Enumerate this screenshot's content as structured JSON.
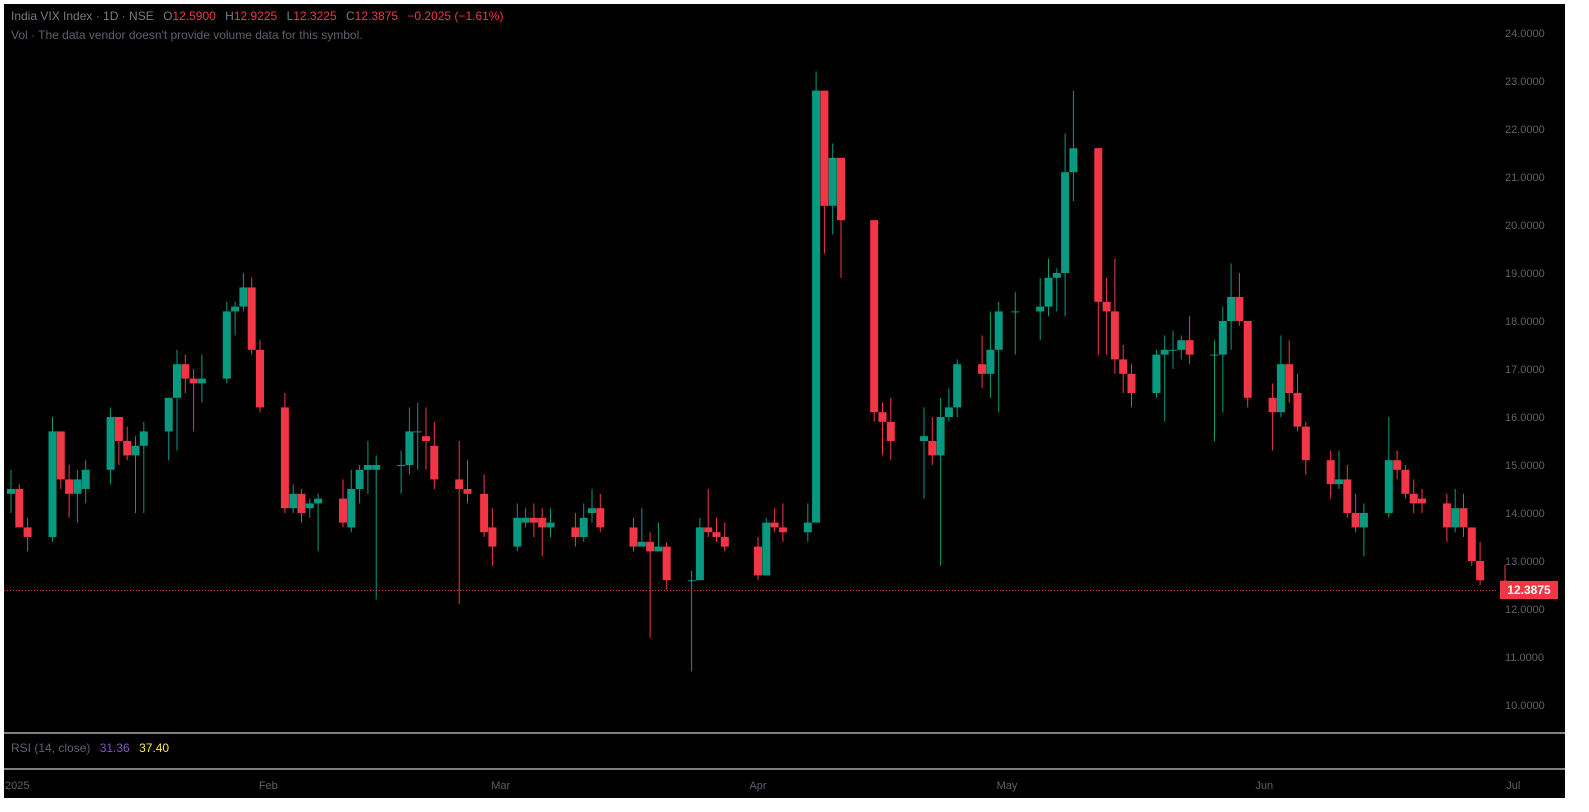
{
  "header": {
    "symbol": "India VIX Index · 1D · NSE",
    "o_label": "O",
    "o_value": "12.5900",
    "h_label": "H",
    "h_value": "12.9225",
    "l_label": "L",
    "l_value": "12.3225",
    "c_label": "C",
    "c_value": "12.3875",
    "change": "−0.2025 (−1.61%)",
    "vol_note": "Vol · The data vendor doesn't provide volume data for this symbol."
  },
  "rsi": {
    "label": "RSI (14, close)",
    "value1": "31.36",
    "value2": "37.40",
    "value1_color": "#7e57c2",
    "value2_color": "#ffeb3b"
  },
  "last_price": {
    "label": "12.3875",
    "value": 12.3875,
    "color": "#f23645"
  },
  "colors": {
    "up": "#089981",
    "down": "#f23645",
    "background": "#000000",
    "text": "#5d606b"
  },
  "chart_data": {
    "type": "candlestick",
    "title": "India VIX Index · 1D · NSE",
    "ylim": [
      9.5,
      24.4
    ],
    "y_ticks": [
      "10.0000",
      "11.0000",
      "12.0000",
      "13.0000",
      "14.0000",
      "15.0000",
      "16.0000",
      "17.0000",
      "18.0000",
      "19.0000",
      "20.0000",
      "21.0000",
      "22.0000",
      "23.0000",
      "24.0000"
    ],
    "x_labels": [
      "2025",
      "Feb",
      "Mar",
      "Apr",
      "May",
      "Jun",
      "Jul"
    ],
    "grid": false,
    "candles": [
      {
        "date": "2025-01-01",
        "o": 14.4,
        "h": 14.9,
        "l": 14.0,
        "c": 14.5
      },
      {
        "date": "2025-01-02",
        "o": 14.5,
        "h": 14.6,
        "l": 13.8,
        "c": 13.7
      },
      {
        "date": "2025-01-03",
        "o": 13.7,
        "h": 13.9,
        "l": 13.2,
        "c": 13.5
      },
      {
        "date": "2025-01-06",
        "o": 13.5,
        "h": 16.0,
        "l": 13.4,
        "c": 15.7
      },
      {
        "date": "2025-01-07",
        "o": 15.7,
        "h": 15.7,
        "l": 14.5,
        "c": 14.7
      },
      {
        "date": "2025-01-08",
        "o": 14.7,
        "h": 15.0,
        "l": 13.9,
        "c": 14.4
      },
      {
        "date": "2025-01-09",
        "o": 14.4,
        "h": 14.9,
        "l": 13.8,
        "c": 14.7
      },
      {
        "date": "2025-01-10",
        "o": 14.5,
        "h": 15.1,
        "l": 14.2,
        "c": 14.9
      },
      {
        "date": "2025-01-13",
        "o": 14.9,
        "h": 16.2,
        "l": 14.6,
        "c": 16.0
      },
      {
        "date": "2025-01-14",
        "o": 16.0,
        "h": 16.0,
        "l": 15.0,
        "c": 15.5
      },
      {
        "date": "2025-01-15",
        "o": 15.5,
        "h": 15.8,
        "l": 15.1,
        "c": 15.2
      },
      {
        "date": "2025-01-16",
        "o": 15.2,
        "h": 15.6,
        "l": 14.0,
        "c": 15.4
      },
      {
        "date": "2025-01-17",
        "o": 15.4,
        "h": 15.9,
        "l": 14.0,
        "c": 15.7
      },
      {
        "date": "2025-01-20",
        "o": 15.7,
        "h": 16.4,
        "l": 15.1,
        "c": 16.4
      },
      {
        "date": "2025-01-21",
        "o": 16.4,
        "h": 17.4,
        "l": 15.3,
        "c": 17.1
      },
      {
        "date": "2025-01-22",
        "o": 17.1,
        "h": 17.3,
        "l": 16.5,
        "c": 16.8
      },
      {
        "date": "2025-01-23",
        "o": 16.8,
        "h": 17.0,
        "l": 15.7,
        "c": 16.7
      },
      {
        "date": "2025-01-24",
        "o": 16.7,
        "h": 17.3,
        "l": 16.3,
        "c": 16.8
      },
      {
        "date": "2025-01-27",
        "o": 16.8,
        "h": 18.4,
        "l": 16.7,
        "c": 18.2
      },
      {
        "date": "2025-01-28",
        "o": 18.2,
        "h": 18.4,
        "l": 17.7,
        "c": 18.3
      },
      {
        "date": "2025-01-29",
        "o": 18.3,
        "h": 19.0,
        "l": 18.2,
        "c": 18.7
      },
      {
        "date": "2025-01-30",
        "o": 18.7,
        "h": 18.9,
        "l": 17.3,
        "c": 17.4
      },
      {
        "date": "2025-01-31",
        "o": 17.4,
        "h": 17.6,
        "l": 16.1,
        "c": 16.2
      },
      {
        "date": "2025-02-03",
        "o": 16.2,
        "h": 16.5,
        "l": 14.0,
        "c": 14.1
      },
      {
        "date": "2025-02-04",
        "o": 14.1,
        "h": 14.6,
        "l": 14.0,
        "c": 14.4
      },
      {
        "date": "2025-02-05",
        "o": 14.4,
        "h": 14.5,
        "l": 13.8,
        "c": 14.0
      },
      {
        "date": "2025-02-06",
        "o": 14.1,
        "h": 14.3,
        "l": 13.9,
        "c": 14.2
      },
      {
        "date": "2025-02-07",
        "o": 14.2,
        "h": 14.4,
        "l": 13.2,
        "c": 14.3
      },
      {
        "date": "2025-02-10",
        "o": 14.3,
        "h": 14.7,
        "l": 13.7,
        "c": 13.8
      },
      {
        "date": "2025-02-11",
        "o": 13.7,
        "h": 14.9,
        "l": 13.6,
        "c": 14.5
      },
      {
        "date": "2025-02-12",
        "o": 14.5,
        "h": 15.0,
        "l": 14.2,
        "c": 14.9
      },
      {
        "date": "2025-02-13",
        "o": 14.9,
        "h": 15.5,
        "l": 14.4,
        "c": 15.0
      },
      {
        "date": "2025-02-14",
        "o": 14.9,
        "h": 15.2,
        "l": 12.2,
        "c": 15.0
      },
      {
        "date": "2025-02-17",
        "o": 15.0,
        "h": 15.3,
        "l": 14.4,
        "c": 15.0
      },
      {
        "date": "2025-02-18",
        "o": 15.0,
        "h": 16.2,
        "l": 14.8,
        "c": 15.7
      },
      {
        "date": "2025-02-19",
        "o": 15.7,
        "h": 16.3,
        "l": 14.9,
        "c": 15.7
      },
      {
        "date": "2025-02-20",
        "o": 15.6,
        "h": 16.2,
        "l": 14.9,
        "c": 15.5
      },
      {
        "date": "2025-02-21",
        "o": 15.4,
        "h": 15.9,
        "l": 14.5,
        "c": 14.7
      },
      {
        "date": "2025-02-24",
        "o": 14.7,
        "h": 15.5,
        "l": 12.1,
        "c": 14.5
      },
      {
        "date": "2025-02-25",
        "o": 14.5,
        "h": 15.1,
        "l": 14.2,
        "c": 14.4
      },
      {
        "date": "2025-02-27",
        "o": 14.4,
        "h": 14.8,
        "l": 13.5,
        "c": 13.6
      },
      {
        "date": "2025-02-28",
        "o": 13.7,
        "h": 14.1,
        "l": 12.9,
        "c": 13.3
      },
      {
        "date": "2025-03-03",
        "o": 13.3,
        "h": 14.2,
        "l": 13.2,
        "c": 13.9
      },
      {
        "date": "2025-03-04",
        "o": 13.8,
        "h": 14.1,
        "l": 13.7,
        "c": 13.9
      },
      {
        "date": "2025-03-05",
        "o": 13.9,
        "h": 14.2,
        "l": 13.5,
        "c": 13.8
      },
      {
        "date": "2025-03-06",
        "o": 13.9,
        "h": 14.1,
        "l": 13.1,
        "c": 13.7
      },
      {
        "date": "2025-03-07",
        "o": 13.7,
        "h": 14.1,
        "l": 13.5,
        "c": 13.8
      },
      {
        "date": "2025-03-10",
        "o": 13.7,
        "h": 14.0,
        "l": 13.3,
        "c": 13.5
      },
      {
        "date": "2025-03-11",
        "o": 13.5,
        "h": 14.2,
        "l": 13.4,
        "c": 13.9
      },
      {
        "date": "2025-03-12",
        "o": 14.0,
        "h": 14.5,
        "l": 13.8,
        "c": 14.1
      },
      {
        "date": "2025-03-13",
        "o": 14.1,
        "h": 14.4,
        "l": 13.6,
        "c": 13.7
      },
      {
        "date": "2025-03-17",
        "o": 13.7,
        "h": 13.9,
        "l": 13.2,
        "c": 13.3
      },
      {
        "date": "2025-03-18",
        "o": 13.3,
        "h": 14.1,
        "l": 13.3,
        "c": 13.4
      },
      {
        "date": "2025-03-19",
        "o": 13.4,
        "h": 13.6,
        "l": 11.4,
        "c": 13.2
      },
      {
        "date": "2025-03-20",
        "o": 13.2,
        "h": 13.8,
        "l": 13.2,
        "c": 13.3
      },
      {
        "date": "2025-03-21",
        "o": 13.3,
        "h": 13.4,
        "l": 12.4,
        "c": 12.6
      },
      {
        "date": "2025-03-24",
        "o": 12.6,
        "h": 12.8,
        "l": 10.7,
        "c": 12.6
      },
      {
        "date": "2025-03-25",
        "o": 12.6,
        "h": 13.9,
        "l": 12.6,
        "c": 13.7
      },
      {
        "date": "2025-03-26",
        "o": 13.7,
        "h": 14.5,
        "l": 13.5,
        "c": 13.6
      },
      {
        "date": "2025-03-27",
        "o": 13.6,
        "h": 13.9,
        "l": 13.4,
        "c": 13.5
      },
      {
        "date": "2025-03-28",
        "o": 13.5,
        "h": 13.8,
        "l": 13.2,
        "c": 13.3
      },
      {
        "date": "2025-04-01",
        "o": 13.3,
        "h": 13.5,
        "l": 12.6,
        "c": 12.7
      },
      {
        "date": "2025-04-02",
        "o": 12.7,
        "h": 13.9,
        "l": 12.7,
        "c": 13.8
      },
      {
        "date": "2025-04-03",
        "o": 13.8,
        "h": 14.1,
        "l": 13.6,
        "c": 13.7
      },
      {
        "date": "2025-04-04",
        "o": 13.7,
        "h": 14.2,
        "l": 13.4,
        "c": 13.6
      },
      {
        "date": "2025-04-07",
        "o": 13.6,
        "h": 14.2,
        "l": 13.4,
        "c": 13.8
      },
      {
        "date": "2025-04-08",
        "o": 13.8,
        "h": 23.2,
        "l": 13.8,
        "c": 22.8
      },
      {
        "date": "2025-04-09",
        "o": 22.8,
        "h": 22.8,
        "l": 19.4,
        "c": 20.4
      },
      {
        "date": "2025-04-10",
        "o": 20.4,
        "h": 21.7,
        "l": 19.8,
        "c": 21.4
      },
      {
        "date": "2025-04-11",
        "o": 21.4,
        "h": 21.4,
        "l": 18.9,
        "c": 20.1
      },
      {
        "date": "2025-04-15",
        "o": 20.1,
        "h": 20.1,
        "l": 15.9,
        "c": 16.1
      },
      {
        "date": "2025-04-16",
        "o": 16.1,
        "h": 16.3,
        "l": 15.2,
        "c": 15.9
      },
      {
        "date": "2025-04-17",
        "o": 15.9,
        "h": 16.4,
        "l": 15.1,
        "c": 15.5
      },
      {
        "date": "2025-04-21",
        "o": 15.5,
        "h": 16.2,
        "l": 14.3,
        "c": 15.6
      },
      {
        "date": "2025-04-22",
        "o": 15.5,
        "h": 16.0,
        "l": 15.0,
        "c": 15.2
      },
      {
        "date": "2025-04-23",
        "o": 15.2,
        "h": 16.4,
        "l": 12.9,
        "c": 16.0
      },
      {
        "date": "2025-04-24",
        "o": 16.0,
        "h": 16.6,
        "l": 15.9,
        "c": 16.2
      },
      {
        "date": "2025-04-25",
        "o": 16.2,
        "h": 17.2,
        "l": 16.0,
        "c": 17.1
      },
      {
        "date": "2025-04-28",
        "o": 17.1,
        "h": 17.7,
        "l": 16.6,
        "c": 16.9
      },
      {
        "date": "2025-04-29",
        "o": 16.9,
        "h": 18.2,
        "l": 16.4,
        "c": 17.4
      },
      {
        "date": "2025-04-30",
        "o": 17.4,
        "h": 18.4,
        "l": 16.1,
        "c": 18.2
      },
      {
        "date": "2025-05-02",
        "o": 18.2,
        "h": 18.6,
        "l": 17.3,
        "c": 18.2
      },
      {
        "date": "2025-05-05",
        "o": 18.2,
        "h": 18.9,
        "l": 17.6,
        "c": 18.3
      },
      {
        "date": "2025-05-06",
        "o": 18.3,
        "h": 19.3,
        "l": 18.1,
        "c": 18.9
      },
      {
        "date": "2025-05-07",
        "o": 18.9,
        "h": 19.1,
        "l": 18.2,
        "c": 19.0
      },
      {
        "date": "2025-05-08",
        "o": 19.0,
        "h": 21.9,
        "l": 18.1,
        "c": 21.1
      },
      {
        "date": "2025-05-09",
        "o": 21.1,
        "h": 22.8,
        "l": 20.5,
        "c": 21.6
      },
      {
        "date": "2025-05-12",
        "o": 21.6,
        "h": 21.6,
        "l": 17.3,
        "c": 18.4
      },
      {
        "date": "2025-05-13",
        "o": 18.4,
        "h": 18.9,
        "l": 17.3,
        "c": 18.2
      },
      {
        "date": "2025-05-14",
        "o": 18.2,
        "h": 19.3,
        "l": 16.9,
        "c": 17.2
      },
      {
        "date": "2025-05-15",
        "o": 17.2,
        "h": 17.5,
        "l": 16.5,
        "c": 16.9
      },
      {
        "date": "2025-05-16",
        "o": 16.9,
        "h": 17.1,
        "l": 16.2,
        "c": 16.5
      },
      {
        "date": "2025-05-19",
        "o": 16.5,
        "h": 17.4,
        "l": 16.4,
        "c": 17.3
      },
      {
        "date": "2025-05-20",
        "o": 17.3,
        "h": 17.7,
        "l": 15.9,
        "c": 17.4
      },
      {
        "date": "2025-05-21",
        "o": 17.4,
        "h": 17.8,
        "l": 17.0,
        "c": 17.4
      },
      {
        "date": "2025-05-22",
        "o": 17.4,
        "h": 17.7,
        "l": 17.2,
        "c": 17.6
      },
      {
        "date": "2025-05-23",
        "o": 17.6,
        "h": 18.1,
        "l": 17.1,
        "c": 17.3
      },
      {
        "date": "2025-05-26",
        "o": 17.3,
        "h": 17.6,
        "l": 15.5,
        "c": 17.3
      },
      {
        "date": "2025-05-27",
        "o": 17.3,
        "h": 18.3,
        "l": 16.1,
        "c": 18.0
      },
      {
        "date": "2025-05-28",
        "o": 18.0,
        "h": 19.2,
        "l": 17.4,
        "c": 18.5
      },
      {
        "date": "2025-05-29",
        "o": 18.5,
        "h": 19.0,
        "l": 17.9,
        "c": 18.0
      },
      {
        "date": "2025-05-30",
        "o": 18.0,
        "h": 18.0,
        "l": 16.2,
        "c": 16.4
      },
      {
        "date": "2025-06-02",
        "o": 16.4,
        "h": 16.7,
        "l": 15.3,
        "c": 16.1
      },
      {
        "date": "2025-06-03",
        "o": 16.1,
        "h": 17.7,
        "l": 16.0,
        "c": 17.1
      },
      {
        "date": "2025-06-04",
        "o": 17.1,
        "h": 17.6,
        "l": 16.3,
        "c": 16.5
      },
      {
        "date": "2025-06-05",
        "o": 16.5,
        "h": 16.9,
        "l": 15.7,
        "c": 15.8
      },
      {
        "date": "2025-06-06",
        "o": 15.8,
        "h": 15.9,
        "l": 14.8,
        "c": 15.1
      },
      {
        "date": "2025-06-09",
        "o": 15.1,
        "h": 15.3,
        "l": 14.3,
        "c": 14.6
      },
      {
        "date": "2025-06-10",
        "o": 14.6,
        "h": 15.3,
        "l": 14.5,
        "c": 14.7
      },
      {
        "date": "2025-06-11",
        "o": 14.7,
        "h": 15.0,
        "l": 13.9,
        "c": 14.0
      },
      {
        "date": "2025-06-12",
        "o": 14.0,
        "h": 14.4,
        "l": 13.6,
        "c": 13.7
      },
      {
        "date": "2025-06-13",
        "o": 13.7,
        "h": 14.2,
        "l": 13.1,
        "c": 14.0
      },
      {
        "date": "2025-06-16",
        "o": 14.0,
        "h": 16.0,
        "l": 13.9,
        "c": 15.1
      },
      {
        "date": "2025-06-17",
        "o": 15.1,
        "h": 15.3,
        "l": 14.7,
        "c": 14.9
      },
      {
        "date": "2025-06-18",
        "o": 14.9,
        "h": 15.0,
        "l": 14.3,
        "c": 14.4
      },
      {
        "date": "2025-06-19",
        "o": 14.4,
        "h": 14.7,
        "l": 14.0,
        "c": 14.2
      },
      {
        "date": "2025-06-20",
        "o": 14.3,
        "h": 14.5,
        "l": 14.0,
        "c": 14.2
      },
      {
        "date": "2025-06-23",
        "o": 14.2,
        "h": 14.4,
        "l": 13.4,
        "c": 13.7
      },
      {
        "date": "2025-06-24",
        "o": 13.7,
        "h": 14.5,
        "l": 13.6,
        "c": 14.1
      },
      {
        "date": "2025-06-25",
        "o": 14.1,
        "h": 14.4,
        "l": 13.5,
        "c": 13.7
      },
      {
        "date": "2025-06-26",
        "o": 13.7,
        "h": 13.7,
        "l": 12.9,
        "c": 13.0
      },
      {
        "date": "2025-06-27",
        "o": 13.0,
        "h": 13.4,
        "l": 12.5,
        "c": 12.6
      },
      {
        "date": "2025-06-30",
        "o": 12.59,
        "h": 12.9225,
        "l": 12.3225,
        "c": 12.3875
      }
    ]
  }
}
